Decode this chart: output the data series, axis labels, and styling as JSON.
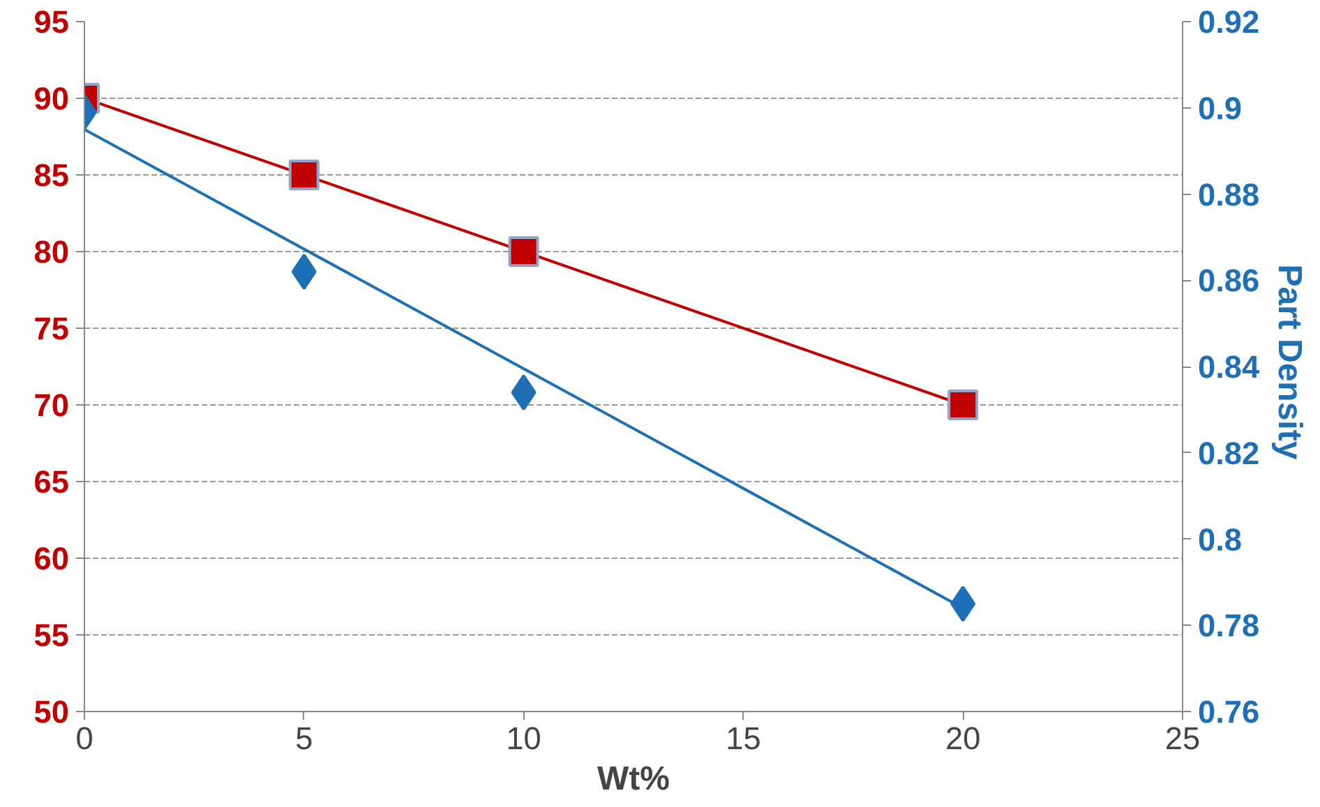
{
  "chart_data": {
    "type": "scatter",
    "xlabel": "Wt%",
    "y2label": "Part  Density",
    "xlim": [
      0,
      25
    ],
    "xticks": [
      0,
      5,
      10,
      15,
      20,
      25
    ],
    "ylim": [
      50,
      95
    ],
    "yticks": [
      50,
      55,
      60,
      65,
      70,
      75,
      80,
      85,
      90,
      95
    ],
    "y2lim": [
      0.76,
      0.92
    ],
    "y2ticks": [
      0.76,
      0.78,
      0.8,
      0.82,
      0.84,
      0.86,
      0.88,
      0.9,
      0.92
    ],
    "grid": "y",
    "series": [
      {
        "marker": "square",
        "color": "#c00000",
        "x": [
          0,
          5,
          10,
          20
        ],
        "values": [
          90,
          85,
          80,
          70
        ]
      },
      {
        "type": "line",
        "marker": "none",
        "color": "#c00000",
        "x": [
          0,
          20
        ],
        "values": [
          90,
          70
        ]
      },
      {
        "marker": "diamond",
        "axis": "y2",
        "color": "#1f6fb5",
        "x": [
          0,
          5,
          10,
          20
        ],
        "values": [
          0.899,
          0.862,
          0.834,
          0.785
        ]
      },
      {
        "type": "line",
        "marker": "none",
        "axis": "y2",
        "color": "#1f6fb5",
        "x": [
          0,
          20
        ],
        "values": [
          0.895,
          0.784
        ]
      }
    ]
  }
}
